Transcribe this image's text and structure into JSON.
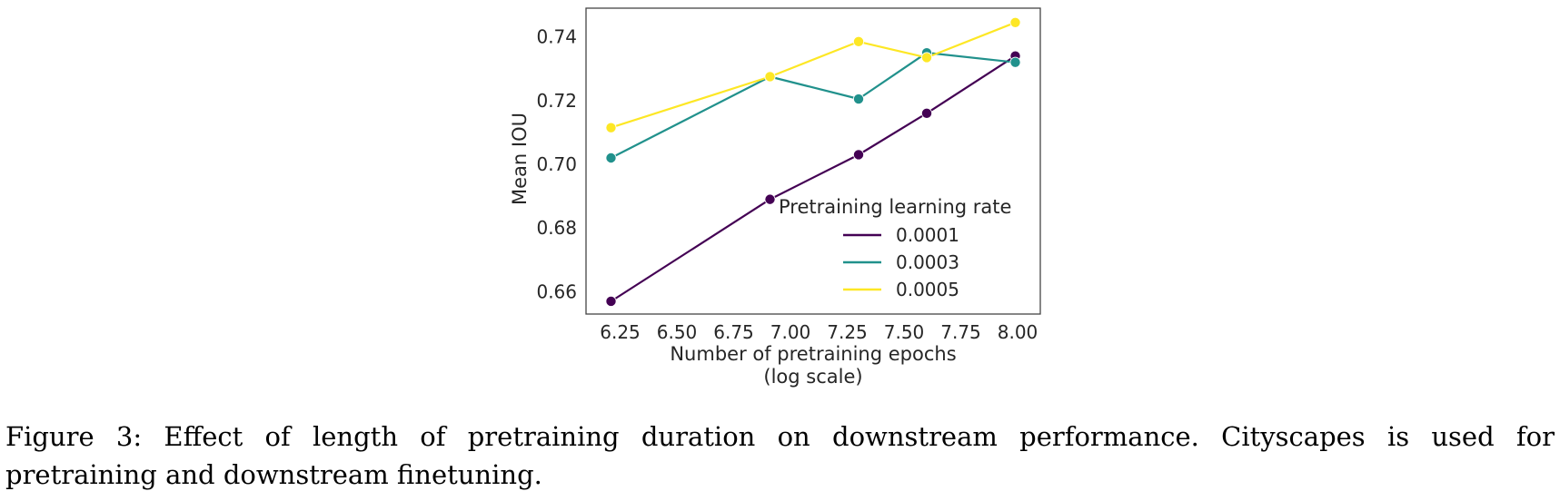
{
  "chart_data": {
    "type": "line",
    "xlabel": "Number of pretraining epochs",
    "xlabel_note": "(log scale)",
    "ylabel": "Mean IOU",
    "xlim": [
      6.1,
      8.1
    ],
    "ylim": [
      0.653,
      0.749
    ],
    "xticks": [
      6.25,
      6.5,
      6.75,
      7.0,
      7.25,
      7.5,
      7.75,
      8.0
    ],
    "xtick_labels": [
      "6.25",
      "6.50",
      "6.75",
      "7.00",
      "7.25",
      "7.50",
      "7.75",
      "8.00"
    ],
    "yticks": [
      0.66,
      0.68,
      0.7,
      0.72,
      0.74
    ],
    "ytick_labels": [
      "0.66",
      "0.68",
      "0.70",
      "0.72",
      "0.74"
    ],
    "grid": false,
    "legend": {
      "title": "Pretraining learning rate",
      "placement": "lower-right"
    },
    "series": [
      {
        "name": "0.0001",
        "color": "#440154",
        "x": [
          6.21,
          6.91,
          7.3,
          7.6,
          7.99
        ],
        "y": [
          0.657,
          0.689,
          0.703,
          0.716,
          0.734
        ]
      },
      {
        "name": "0.0003",
        "color": "#21918c",
        "x": [
          6.21,
          6.91,
          7.3,
          7.6,
          7.99
        ],
        "y": [
          0.702,
          0.7275,
          0.7205,
          0.735,
          0.732
        ]
      },
      {
        "name": "0.0005",
        "color": "#fde725",
        "x": [
          6.21,
          6.91,
          7.3,
          7.6,
          7.99
        ],
        "y": [
          0.7115,
          0.7275,
          0.7385,
          0.7335,
          0.7445
        ]
      }
    ]
  },
  "caption": {
    "line1": "Figure 3:  Effect of length of pretraining duration on downstream performance.  Cityscapes is used for",
    "line2": "pretraining and downstream finetuning."
  }
}
